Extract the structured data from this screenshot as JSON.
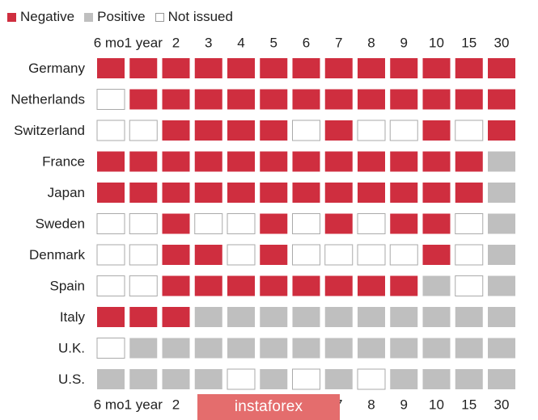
{
  "chart_data": {
    "type": "heatmap",
    "legend": [
      {
        "label": "Negative",
        "color": "#cf2e3f"
      },
      {
        "label": "Positive",
        "color": "#bfbfbf"
      },
      {
        "label": "Not issued",
        "color": "#ffffff"
      }
    ],
    "columns": [
      "6 mo.",
      "1 year",
      "2",
      "3",
      "4",
      "5",
      "6",
      "7",
      "8",
      "9",
      "10",
      "15",
      "30"
    ],
    "rows": [
      {
        "label": "Germany",
        "cells": [
          "N",
          "N",
          "N",
          "N",
          "N",
          "N",
          "N",
          "N",
          "N",
          "N",
          "N",
          "N",
          "N"
        ]
      },
      {
        "label": "Netherlands",
        "cells": [
          "X",
          "N",
          "N",
          "N",
          "N",
          "N",
          "N",
          "N",
          "N",
          "N",
          "N",
          "N",
          "N"
        ]
      },
      {
        "label": "Switzerland",
        "cells": [
          "X",
          "X",
          "N",
          "N",
          "N",
          "N",
          "X",
          "N",
          "X",
          "X",
          "N",
          "X",
          "N"
        ]
      },
      {
        "label": "France",
        "cells": [
          "N",
          "N",
          "N",
          "N",
          "N",
          "N",
          "N",
          "N",
          "N",
          "N",
          "N",
          "N",
          "P"
        ]
      },
      {
        "label": "Japan",
        "cells": [
          "N",
          "N",
          "N",
          "N",
          "N",
          "N",
          "N",
          "N",
          "N",
          "N",
          "N",
          "N",
          "P"
        ]
      },
      {
        "label": "Sweden",
        "cells": [
          "X",
          "X",
          "N",
          "X",
          "X",
          "N",
          "X",
          "N",
          "X",
          "N",
          "N",
          "X",
          "P"
        ]
      },
      {
        "label": "Denmark",
        "cells": [
          "X",
          "X",
          "N",
          "N",
          "X",
          "N",
          "X",
          "X",
          "X",
          "X",
          "N",
          "X",
          "P"
        ]
      },
      {
        "label": "Spain",
        "cells": [
          "X",
          "X",
          "N",
          "N",
          "N",
          "N",
          "N",
          "N",
          "N",
          "N",
          "P",
          "X",
          "P"
        ]
      },
      {
        "label": "Italy",
        "cells": [
          "N",
          "N",
          "N",
          "P",
          "P",
          "P",
          "P",
          "P",
          "P",
          "P",
          "P",
          "P",
          "P"
        ]
      },
      {
        "label": "U.K.",
        "cells": [
          "X",
          "P",
          "P",
          "P",
          "P",
          "P",
          "P",
          "P",
          "P",
          "P",
          "P",
          "P",
          "P"
        ]
      },
      {
        "label": "U.S.",
        "cells": [
          "P",
          "P",
          "P",
          "P",
          "X",
          "P",
          "X",
          "P",
          "X",
          "P",
          "P",
          "P",
          "P"
        ]
      }
    ],
    "cell_key": {
      "N": "Negative",
      "P": "Positive",
      "X": "Not issued"
    },
    "colors": {
      "negative": "#cf2e3f",
      "positive": "#bfbfbf",
      "not_issued": "#ffffff",
      "border": "#aaaaaa"
    }
  },
  "watermark": "instaforex"
}
